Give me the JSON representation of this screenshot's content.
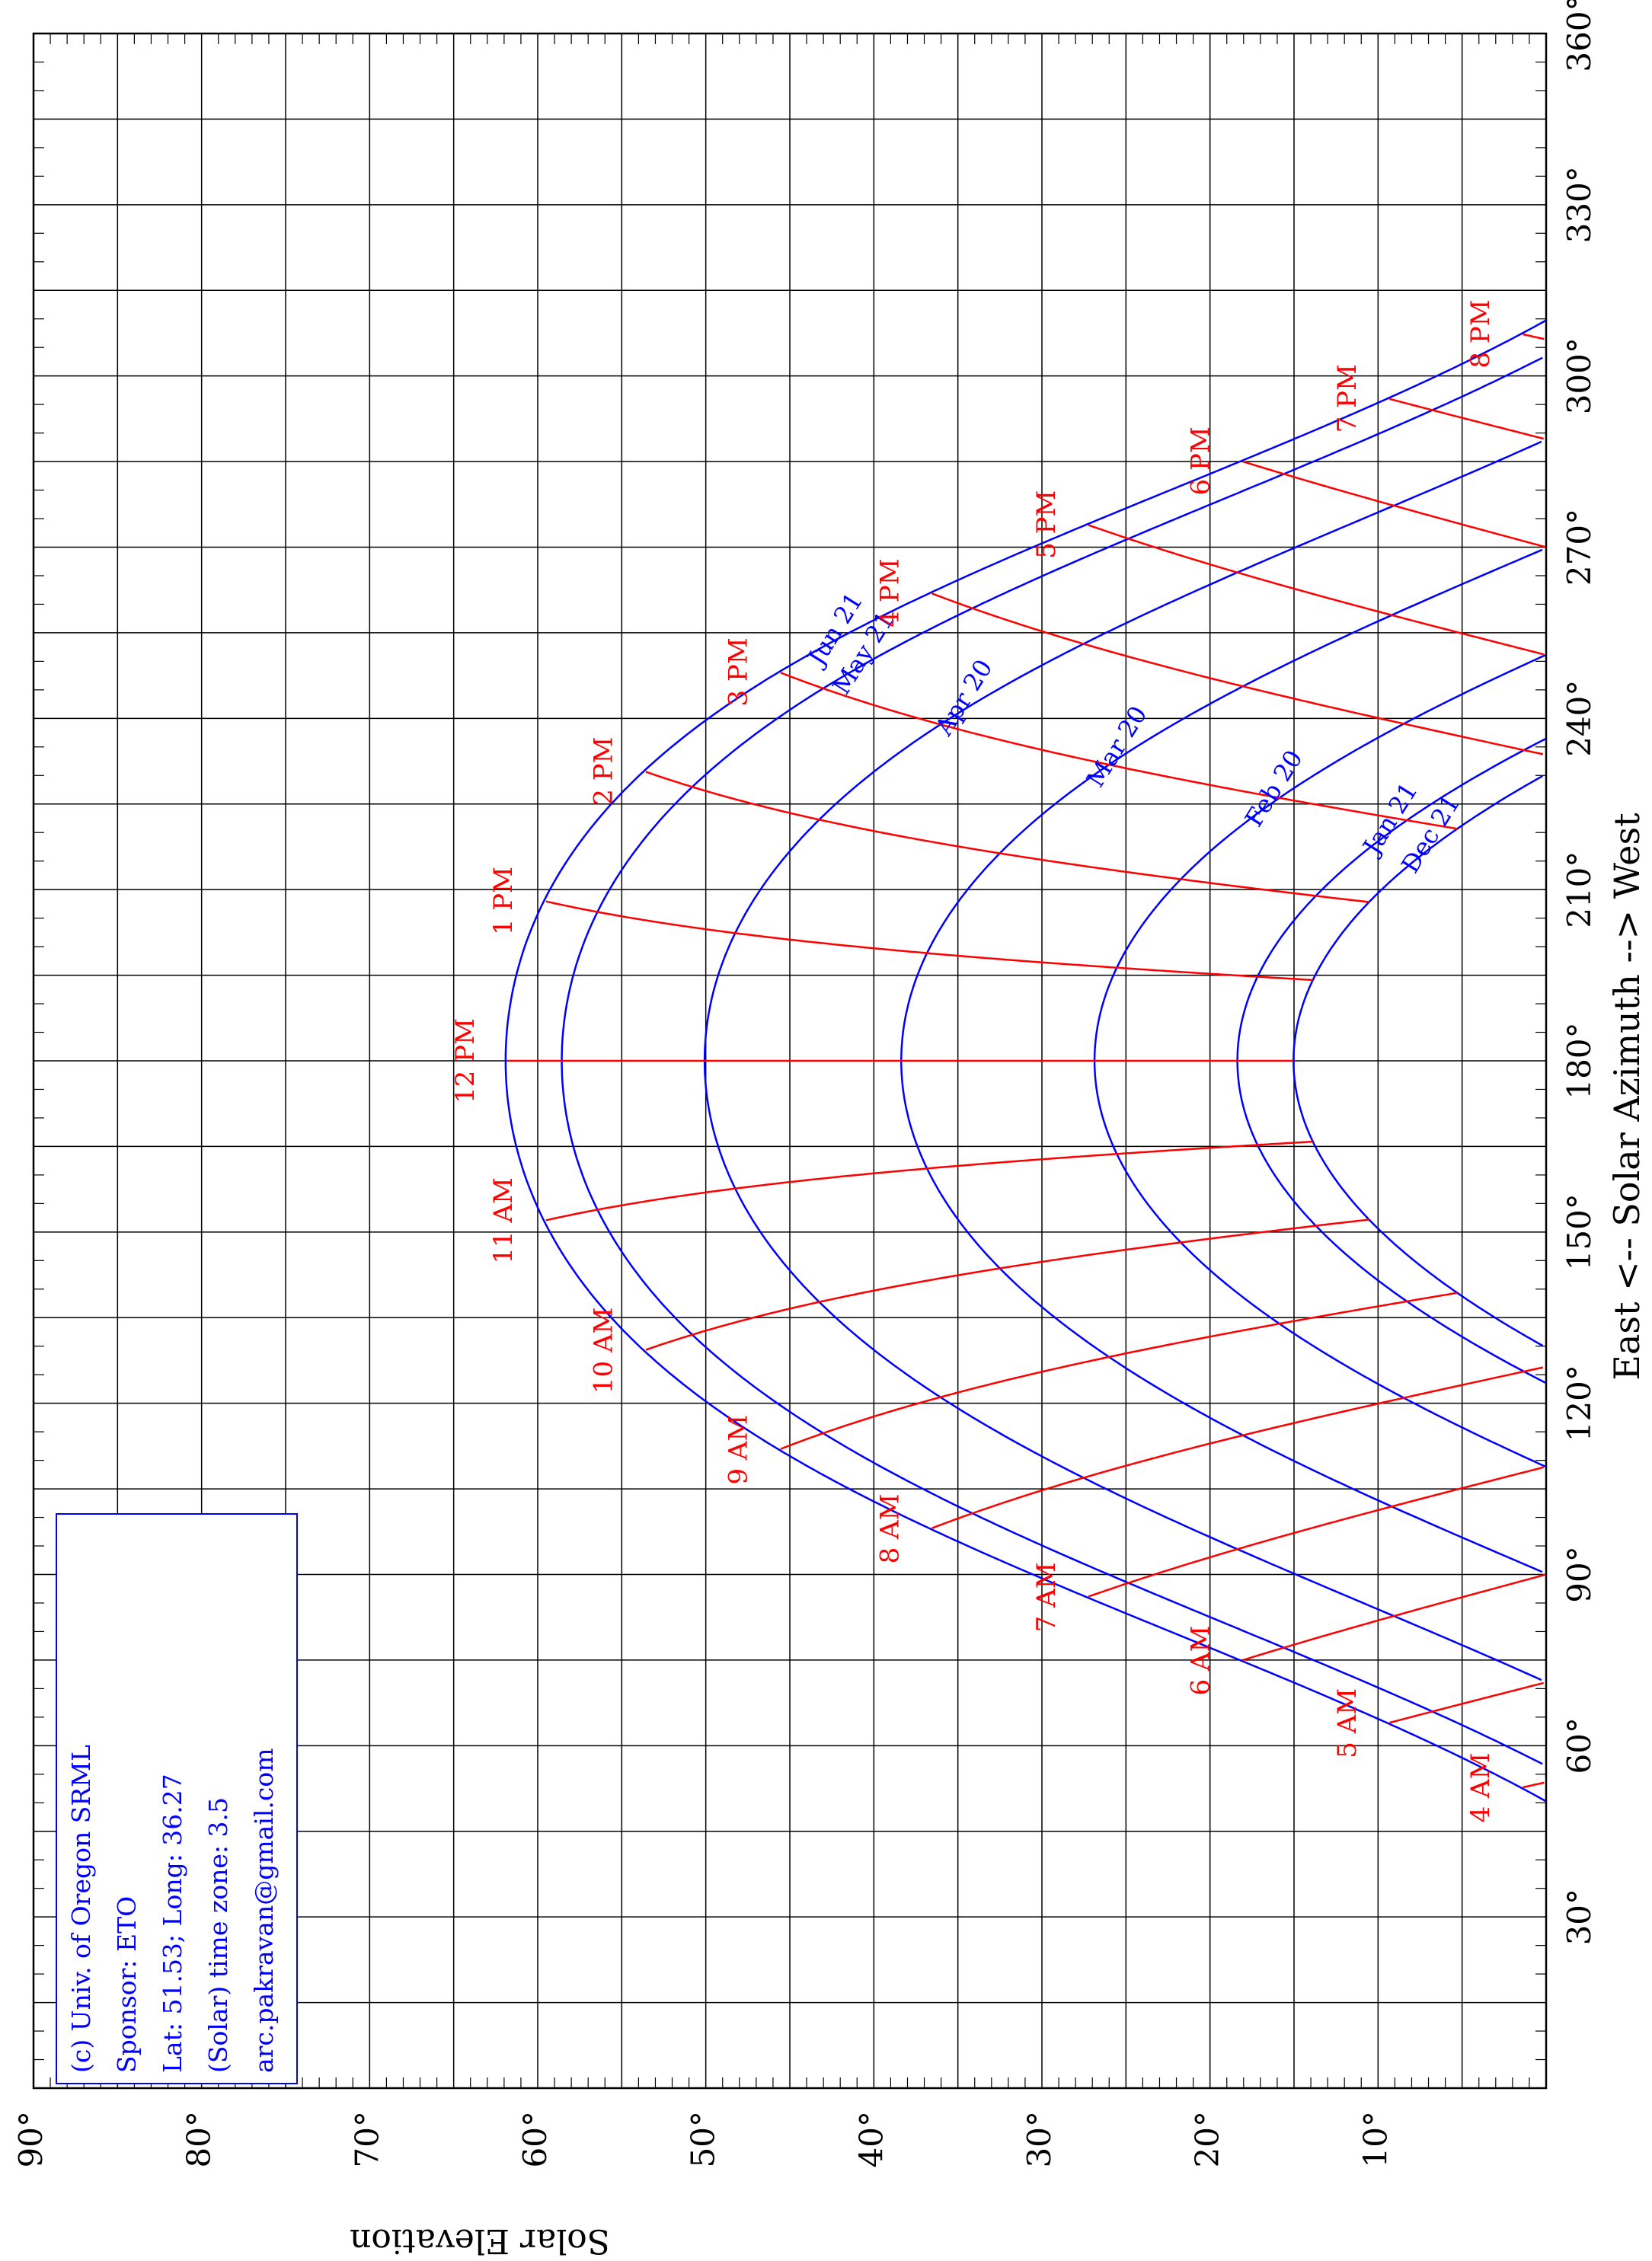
{
  "chart_data": {
    "type": "line",
    "orientation": "rotated-90-clockwise",
    "xlabel": "East <-- Solar Azimuth --> West",
    "ylabel": "Solar Elevation",
    "xlim": [
      0,
      360
    ],
    "ylim": [
      0,
      90
    ],
    "x_tick_labels": [
      "30°",
      "60°",
      "90°",
      "120°",
      "150°",
      "180°",
      "210°",
      "240°",
      "270°",
      "300°",
      "330°",
      "360°"
    ],
    "y_tick_labels": [
      "10°",
      "20°",
      "30°",
      "40°",
      "50°",
      "60°",
      "70°",
      "80°",
      "90°"
    ],
    "grid": true,
    "info_box": {
      "lines": [
        "(c) Univ. of Oregon SRML",
        "Sponsor: ETO",
        "Lat: 51.53; Long: 36.27",
        "(Solar) time zone: 3.5",
        "arc.pakravan@gmail.com"
      ]
    },
    "colors": {
      "date_curves": "#0000ff",
      "hour_lines": "#ff0000",
      "grid": "#000000"
    },
    "latitude": 51.53,
    "date_series": [
      {
        "name": "Jun 21",
        "declination": 23.44
      },
      {
        "name": "May 21",
        "declination": 20.1
      },
      {
        "name": "Apr 20",
        "declination": 11.6
      },
      {
        "name": "Mar 20",
        "declination": -0.1
      },
      {
        "name": "Feb 20",
        "declination": -11.6
      },
      {
        "name": "Jan 21",
        "declination": -20.1
      },
      {
        "name": "Dec 21",
        "declination": -23.44
      }
    ],
    "hour_series": [
      {
        "name": "4 AM",
        "hour": 4
      },
      {
        "name": "5 AM",
        "hour": 5
      },
      {
        "name": "6 AM",
        "hour": 6
      },
      {
        "name": "7 AM",
        "hour": 7
      },
      {
        "name": "8 AM",
        "hour": 8
      },
      {
        "name": "9 AM",
        "hour": 9
      },
      {
        "name": "10 AM",
        "hour": 10
      },
      {
        "name": "11 AM",
        "hour": 11
      },
      {
        "name": "12 PM",
        "hour": 12
      },
      {
        "name": "1 PM",
        "hour": 13
      },
      {
        "name": "2 PM",
        "hour": 14
      },
      {
        "name": "3 PM",
        "hour": 15
      },
      {
        "name": "4 PM",
        "hour": 16
      },
      {
        "name": "5 PM",
        "hour": 17
      },
      {
        "name": "6 PM",
        "hour": 18
      },
      {
        "name": "7 PM",
        "hour": 19
      },
      {
        "name": "8 PM",
        "hour": 20
      }
    ]
  }
}
